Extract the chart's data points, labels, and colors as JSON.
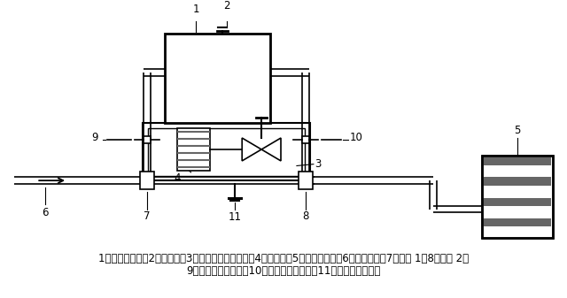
{
  "bg_color": "#ffffff",
  "line_color": "#000000",
  "dark_gray": "#666666",
  "caption_line1": "1，曝气储水罐；2，排气阀；3，文丘里空气射流器；4，增压泵；5，各灌水毛管；6，输水干管；7，三通 1；8，三通 2；",
  "caption_line2": "9，第一水量控制阀；10，第二水量控制阀；11，第三水量控制阀",
  "caption_fontsize": 8.5
}
